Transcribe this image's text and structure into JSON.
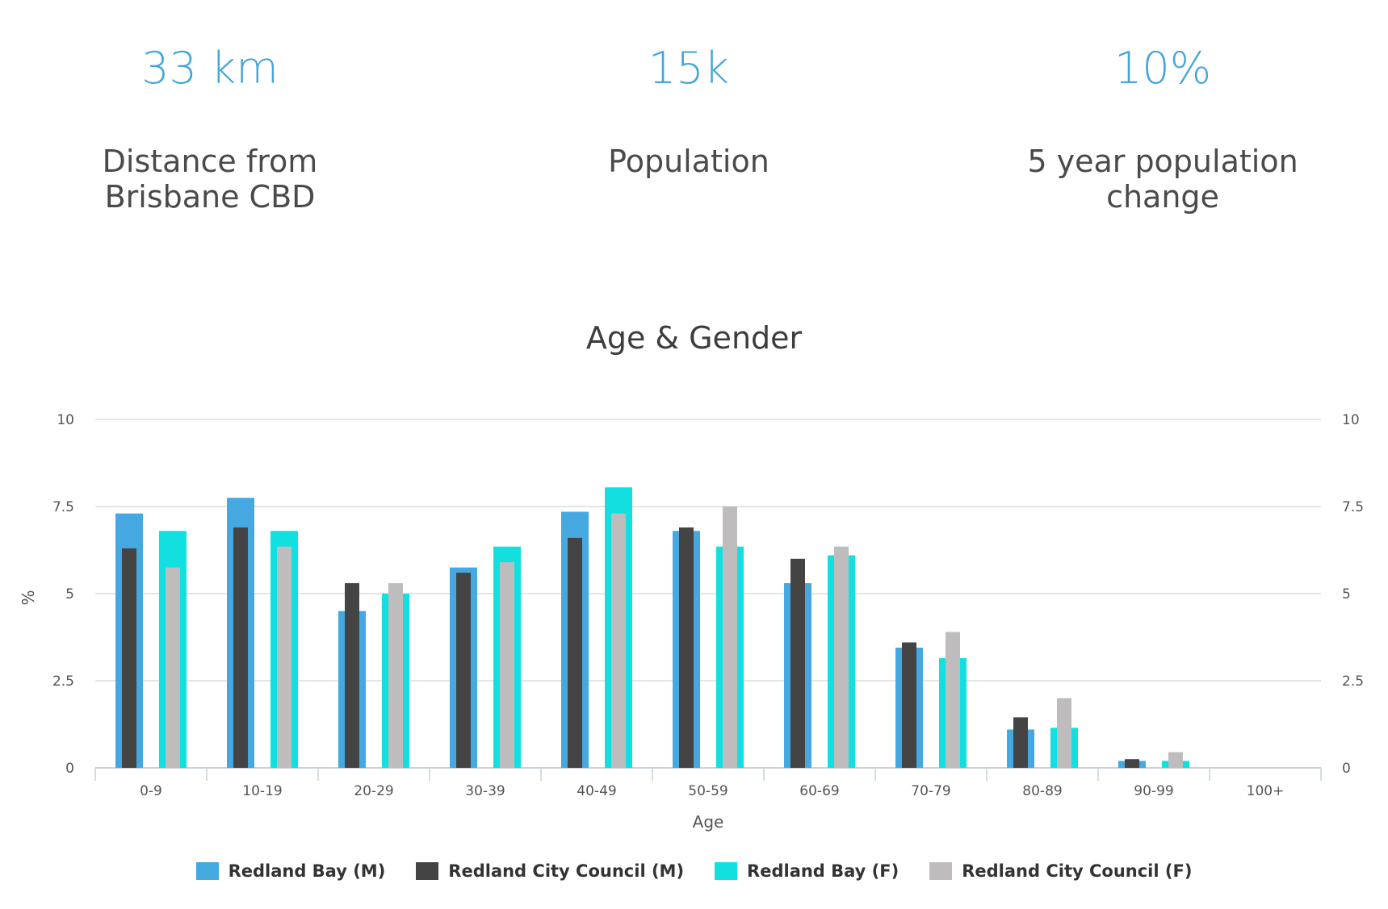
{
  "stats": [
    {
      "value": "33 km",
      "label": "Distance from Brisbane CBD"
    },
    {
      "value": "15k",
      "label": "Population"
    },
    {
      "value": "10%",
      "label": "5 year population change"
    }
  ],
  "colors": {
    "accent": "#44a6dc",
    "redland_bay_m": "#45a8e0",
    "redland_city_m": "#444444",
    "redland_bay_f": "#12e0e0",
    "redland_city_f": "#bebcbc",
    "grid": "#d9dde2"
  },
  "chart_data": {
    "type": "bar",
    "title": "Age & Gender",
    "xlabel": "Age",
    "ylabel": "%",
    "ylim": [
      0,
      10
    ],
    "yticks": [
      0,
      2.5,
      5,
      7.5,
      10
    ],
    "ytick_labels": [
      "0",
      "2.5",
      "5",
      "7.5",
      "10"
    ],
    "categories": [
      "0-9",
      "10-19",
      "20-29",
      "30-39",
      "40-49",
      "50-59",
      "60-69",
      "70-79",
      "80-89",
      "90-99",
      "100+"
    ],
    "legend_position": "bottom",
    "series": [
      {
        "name": "Redland Bay (M)",
        "color": "#45a8e0",
        "group": "M",
        "layer": "wide",
        "values": [
          7.3,
          7.75,
          4.5,
          5.75,
          7.35,
          6.8,
          5.3,
          3.45,
          1.1,
          0.2,
          0
        ]
      },
      {
        "name": "Redland City Council (M)",
        "color": "#444444",
        "group": "M",
        "layer": "narrow",
        "values": [
          6.3,
          6.9,
          5.3,
          5.6,
          6.6,
          6.9,
          6.0,
          3.6,
          1.45,
          0.25,
          0
        ]
      },
      {
        "name": "Redland Bay (F)",
        "color": "#12e0e0",
        "group": "F",
        "layer": "wide",
        "values": [
          6.8,
          6.8,
          5.0,
          6.35,
          8.05,
          6.35,
          6.1,
          3.15,
          1.15,
          0.2,
          0
        ]
      },
      {
        "name": "Redland City Council (F)",
        "color": "#bebcbc",
        "group": "F",
        "layer": "narrow",
        "values": [
          5.75,
          6.35,
          5.3,
          5.9,
          7.3,
          7.5,
          6.35,
          3.9,
          2.0,
          0.45,
          0
        ]
      }
    ]
  }
}
